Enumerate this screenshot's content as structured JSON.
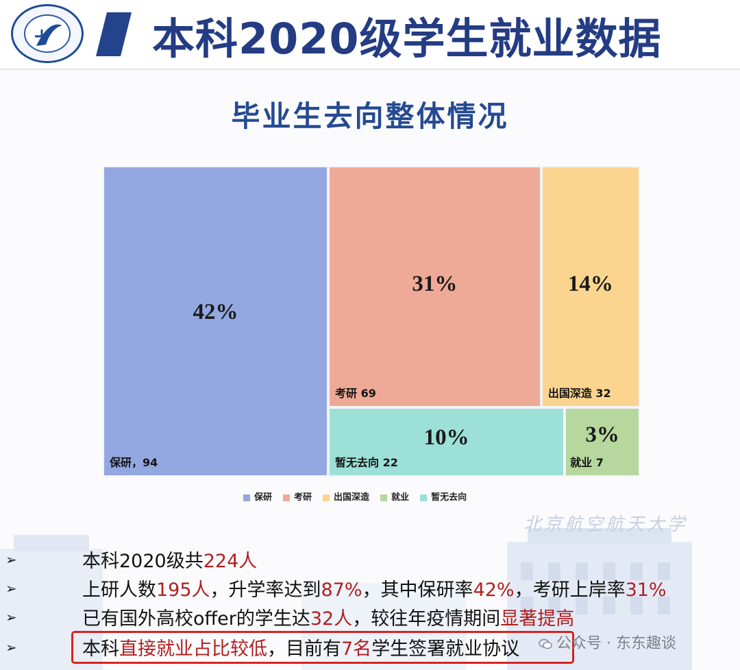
{
  "header": {
    "title": "本科2020级学生就业数据",
    "subtitle": "毕业生去向整体情况",
    "logo_icon": "university-emblem-icon",
    "watermark_school": "北京航空航天大学"
  },
  "chart_data": {
    "type": "treemap",
    "categories": [
      "保研",
      "考研",
      "出国深造",
      "就业",
      "暂无去向"
    ],
    "values": [
      94,
      69,
      32,
      7,
      22
    ],
    "percent_labels": [
      "42%",
      "31%",
      "14%",
      "3%",
      "10%"
    ],
    "tile_labels": [
      "保研，94",
      "考研 69",
      "出国深造 32",
      "就业 7",
      "暂无去向 22"
    ],
    "colors": [
      "#93a7e0",
      "#eeaa96",
      "#fbd58f",
      "#b6d79d",
      "#9ce0d7"
    ],
    "legend": [
      "保研",
      "考研",
      "出国深造",
      "就业",
      "暂无去向"
    ],
    "legend_position": "bottom"
  },
  "bullets": [
    {
      "parts": [
        {
          "t": "本科2020级共",
          "r": false
        },
        {
          "t": "224人",
          "r": true
        }
      ]
    },
    {
      "parts": [
        {
          "t": "上研人数",
          "r": false
        },
        {
          "t": "195人",
          "r": true
        },
        {
          "t": "，升学率达到",
          "r": false
        },
        {
          "t": "87%",
          "r": true
        },
        {
          "t": "，其中保研率",
          "r": false
        },
        {
          "t": "42%",
          "r": true
        },
        {
          "t": "，考研上岸率",
          "r": false
        },
        {
          "t": "31%",
          "r": true
        }
      ]
    },
    {
      "parts": [
        {
          "t": "已有国外高校offer的学生达",
          "r": false
        },
        {
          "t": "32人",
          "r": true
        },
        {
          "t": "，较往年疫情期间",
          "r": false
        },
        {
          "t": "显著提高",
          "r": true
        }
      ]
    },
    {
      "parts": [
        {
          "t": "本科",
          "r": false
        },
        {
          "t": "直接就业占比较低",
          "r": true
        },
        {
          "t": "，目前有",
          "r": false
        },
        {
          "t": "7名",
          "r": true
        },
        {
          "t": "学生签署就业协议",
          "r": false
        }
      ]
    }
  ],
  "bullet_marker": "➢",
  "watermark": {
    "text": "公众号 · 东东趣谈",
    "icon": "wechat-icon"
  }
}
